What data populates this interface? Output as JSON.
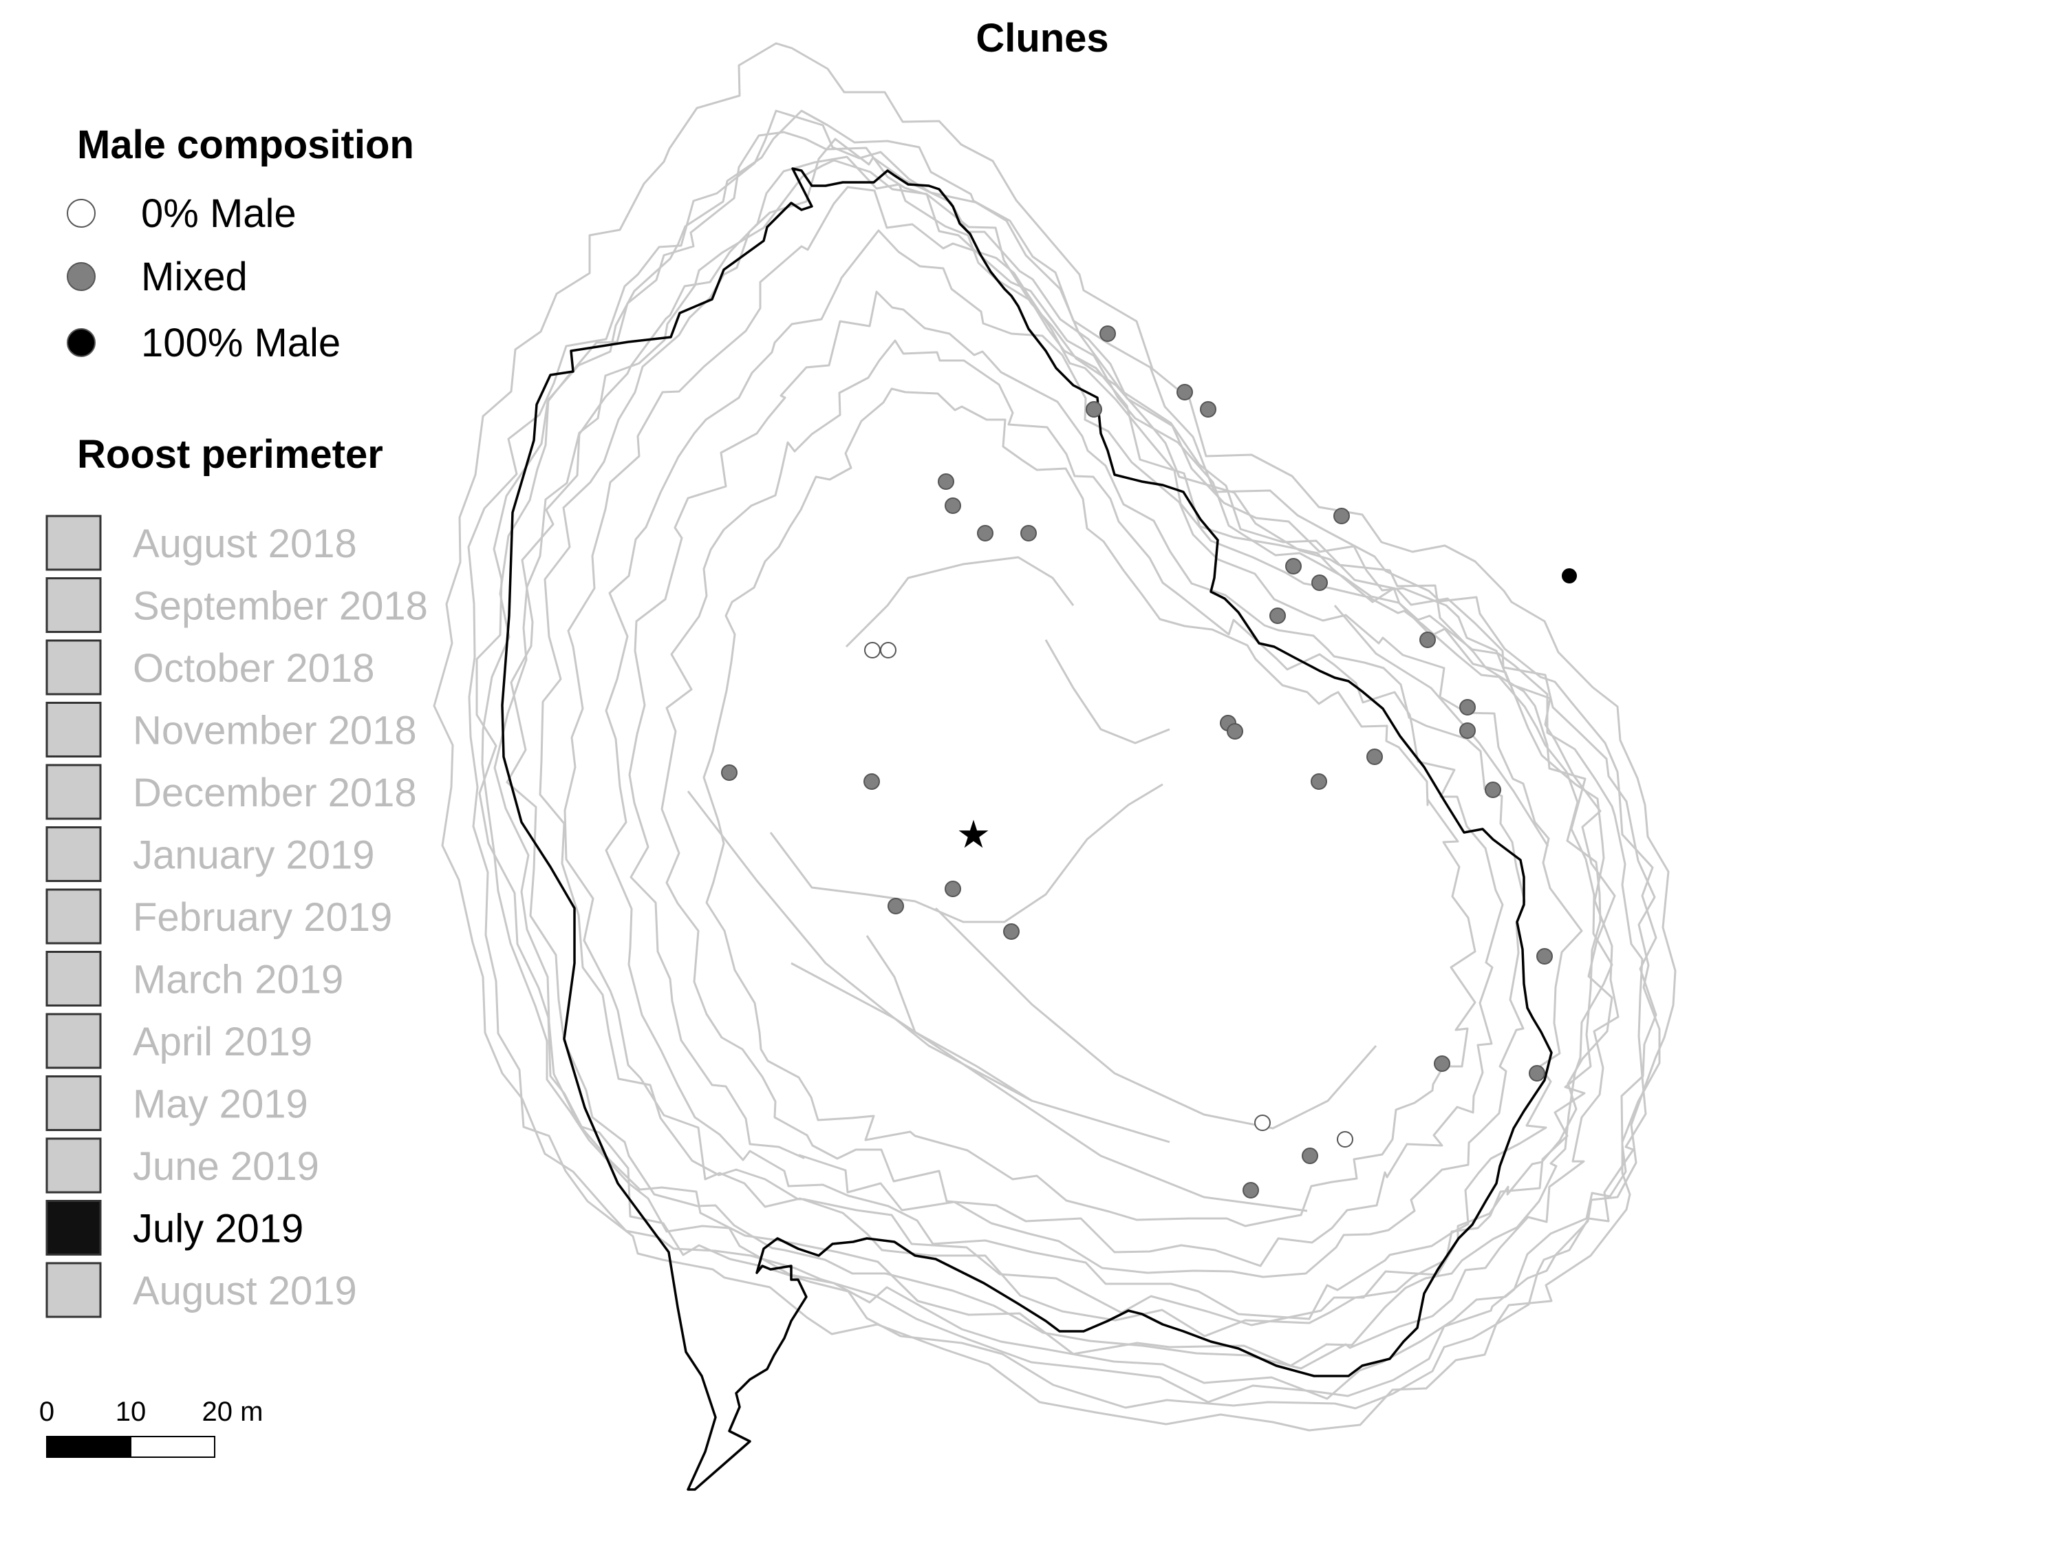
{
  "title": "Clunes",
  "legend": {
    "male_composition": {
      "heading": "Male composition",
      "items": [
        {
          "label": "0% Male",
          "fill": "#ffffff"
        },
        {
          "label": "Mixed",
          "fill": "#808080"
        },
        {
          "label": "100% Male",
          "fill": "#000000"
        }
      ]
    },
    "roost_perimeter": {
      "heading": "Roost perimeter",
      "items": [
        {
          "label": "August 2018",
          "highlight": false
        },
        {
          "label": "September 2018",
          "highlight": false
        },
        {
          "label": "October 2018",
          "highlight": false
        },
        {
          "label": "November 2018",
          "highlight": false
        },
        {
          "label": "December 2018",
          "highlight": false
        },
        {
          "label": "January 2019",
          "highlight": false
        },
        {
          "label": "February 2019",
          "highlight": false
        },
        {
          "label": "March 2019",
          "highlight": false
        },
        {
          "label": "April 2019",
          "highlight": false
        },
        {
          "label": "May 2019",
          "highlight": false
        },
        {
          "label": "June 2019",
          "highlight": false
        },
        {
          "label": "July 2019",
          "highlight": true
        },
        {
          "label": "August 2019",
          "highlight": false
        }
      ]
    }
  },
  "scale_bar": {
    "tick_0": "0",
    "tick_10": "10",
    "tick_20": "20 m"
  },
  "colors": {
    "highlight_perimeter": "#000000",
    "other_perimeters": "#c8c8c8",
    "legend_swatch_grey": "#cccccc",
    "legend_swatch_highlight": "#111111",
    "dimmed_label": "#bcbcbc"
  },
  "marker_icons": {
    "roost_center": "star-icon"
  }
}
